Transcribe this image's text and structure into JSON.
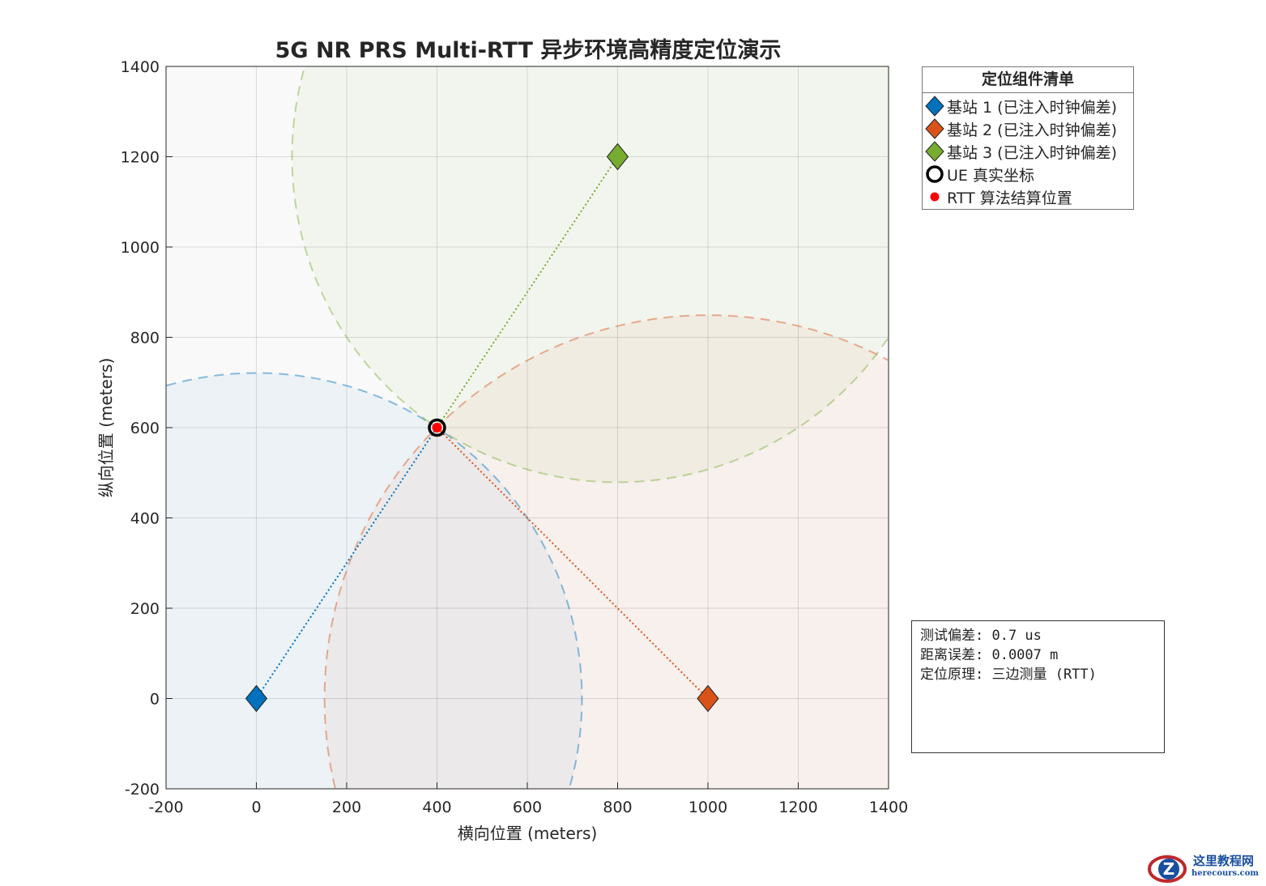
{
  "chart_data": {
    "type": "scatter",
    "title": "5G NR PRS Multi-RTT 异步环境高精度定位演示",
    "xlabel": "横向位置 (meters)",
    "ylabel": "纵向位置 (meters)",
    "xlim": [
      -200,
      1400
    ],
    "ylim": [
      -200,
      1400
    ],
    "xticks": [
      -200,
      0,
      200,
      400,
      600,
      800,
      1000,
      1200,
      1400
    ],
    "yticks": [
      -200,
      0,
      200,
      400,
      600,
      800,
      1000,
      1200,
      1400
    ],
    "grid": true,
    "legend_position": "outside-top-right",
    "base_stations": [
      {
        "name": "基站 1 (已注入时钟偏差)",
        "x": 0,
        "y": 0,
        "color": "#0072BD",
        "range_radius": 721
      },
      {
        "name": "基站 2 (已注入时钟偏差)",
        "x": 1000,
        "y": 0,
        "color": "#D95319",
        "range_radius": 849
      },
      {
        "name": "基站 3 (已注入时钟偏差)",
        "x": 800,
        "y": 1200,
        "color": "#77AC30",
        "range_radius": 721
      }
    ],
    "ue_true": {
      "name": "UE 真实坐标",
      "x": 400,
      "y": 600
    },
    "rtt_estimate": {
      "name": "RTT 算法结算位置",
      "x": 400,
      "y": 600,
      "color": "#FF0000"
    }
  },
  "legend": {
    "title": "定位组件清单"
  },
  "info": {
    "lines": [
      "测试偏差: 0.7 us",
      "距离误差: 0.0007 m",
      "定位原理: 三边测量 (RTT)"
    ]
  },
  "watermark": {
    "cn": "这里教程网",
    "en": "herecours.com"
  }
}
